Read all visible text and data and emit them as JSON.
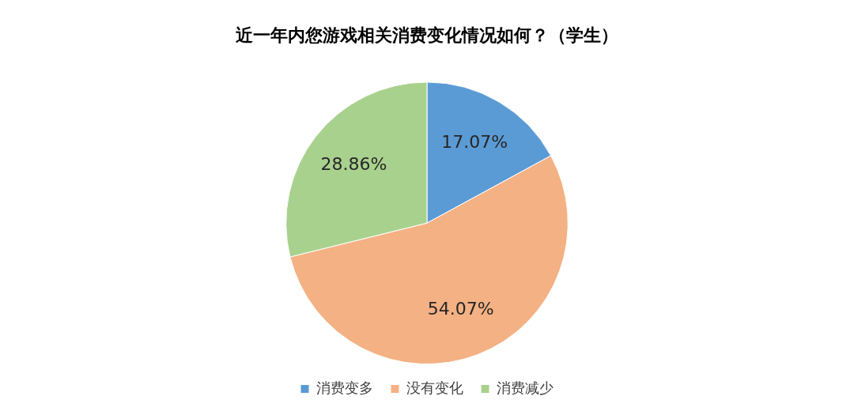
{
  "chart_data": {
    "type": "pie",
    "title": "近一年内您游戏相关消费变化情况如何？（学生）",
    "categories": [
      "消费变多",
      "没有变化",
      "消费减少"
    ],
    "values": [
      17.07,
      54.07,
      28.86
    ],
    "colors": [
      "#5b9bd5",
      "#f4b183",
      "#a9d18e"
    ],
    "value_labels": [
      "17.07%",
      "54.07%",
      "28.86%"
    ],
    "legend": "bottom"
  }
}
